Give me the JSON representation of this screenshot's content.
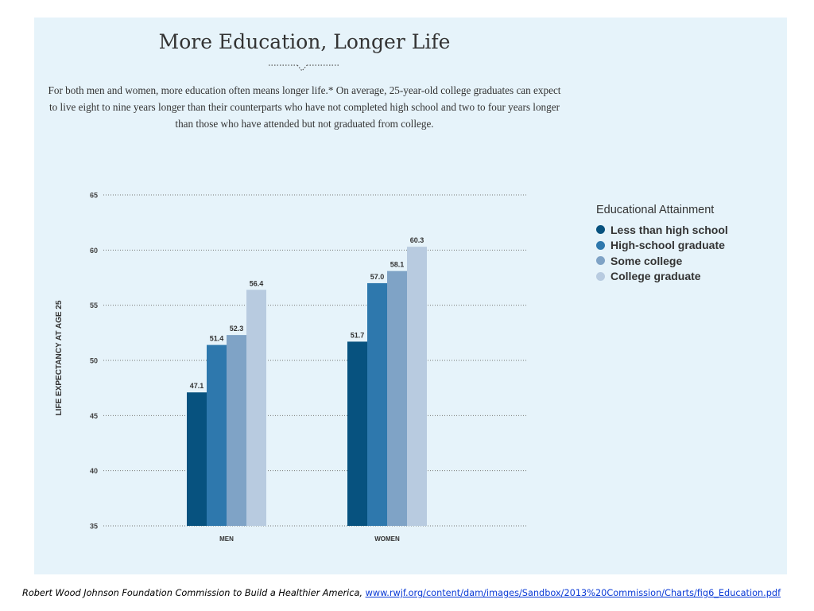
{
  "colors": {
    "panel_background": "#e6f3fa",
    "series": [
      "#07527f",
      "#2e78ad",
      "#7fa3c6",
      "#b8cbe0"
    ]
  },
  "source": {
    "text": "Robert Wood Johnson Foundation Commission to Build a Healthier America,",
    "link": "www.rwjf.org/content/dam/images/Sandbox/2013%20Commission/Charts/fig6_Education.pdf"
  },
  "chart_data": {
    "type": "bar",
    "title": "More Education, Longer Life",
    "subtitle": "For both men and women, more education often means longer life.* On average, 25-year-old college graduates can expect to live eight to nine years longer than their counterparts who have not completed high school and two to four years longer than those who have attended but not graduated from college.",
    "xlabel": "",
    "ylabel": "LIFE EXPECTANCY AT AGE 25",
    "categories": [
      "MEN",
      "WOMEN"
    ],
    "series": [
      {
        "name": "Less than high school",
        "values": [
          47.1,
          51.7
        ],
        "labels": [
          "47.1",
          "51.7"
        ]
      },
      {
        "name": "High-school graduate",
        "values": [
          51.4,
          57.0
        ],
        "labels": [
          "51.4",
          "57.0"
        ]
      },
      {
        "name": "Some college",
        "values": [
          52.3,
          58.1
        ],
        "labels": [
          "52.3",
          "58.1"
        ]
      },
      {
        "name": "College graduate",
        "values": [
          56.4,
          60.3
        ],
        "labels": [
          "56.4",
          "60.3"
        ]
      }
    ],
    "ylim": [
      35,
      65
    ],
    "yticks": [
      35,
      40,
      45,
      50,
      55,
      60,
      65
    ],
    "grid": true,
    "legend": {
      "title": "Educational Attainment",
      "position": "right"
    }
  }
}
